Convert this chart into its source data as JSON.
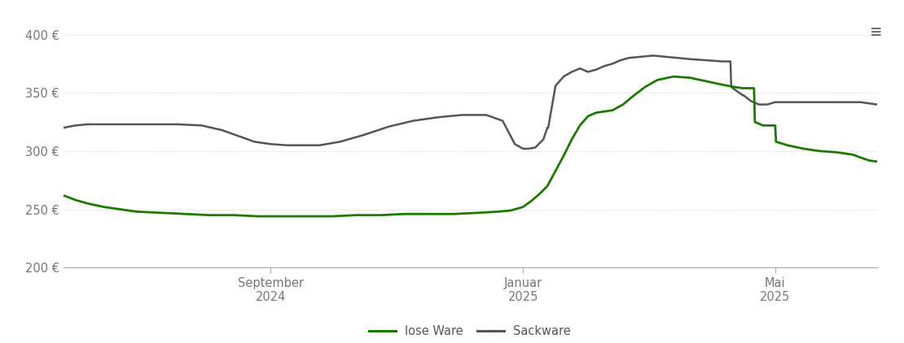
{
  "title": "",
  "ylim": [
    200,
    415
  ],
  "yticks": [
    200,
    250,
    300,
    350,
    400
  ],
  "ylabel_fmt": "{} €",
  "background_color": "#ffffff",
  "grid_color": "#cccccc",
  "lose_ware_color": "#1a7a00",
  "sackware_color": "#555555",
  "legend_labels": [
    "lose Ware",
    "Sackware"
  ],
  "x_tick_labels": [
    "September\n2024",
    "Januar\n2025",
    "Mai\n2025"
  ],
  "lose_ware": {
    "x": [
      0.0,
      0.015,
      0.03,
      0.05,
      0.07,
      0.09,
      0.12,
      0.15,
      0.18,
      0.21,
      0.24,
      0.27,
      0.3,
      0.33,
      0.36,
      0.39,
      0.42,
      0.45,
      0.48,
      0.51,
      0.535,
      0.55,
      0.565,
      0.575,
      0.585,
      0.595,
      0.605,
      0.615,
      0.625,
      0.635,
      0.645,
      0.655,
      0.665,
      0.675,
      0.688,
      0.7,
      0.715,
      0.73,
      0.75,
      0.77,
      0.79,
      0.81,
      0.825,
      0.835,
      0.845,
      0.849,
      0.85,
      0.86,
      0.861,
      0.875,
      0.876,
      0.89,
      0.91,
      0.93,
      0.95,
      0.97,
      0.99,
      1.0
    ],
    "y": [
      262,
      258,
      255,
      252,
      250,
      248,
      247,
      246,
      245,
      245,
      244,
      244,
      244,
      244,
      245,
      245,
      246,
      246,
      246,
      247,
      248,
      249,
      252,
      257,
      263,
      270,
      283,
      296,
      310,
      322,
      330,
      333,
      334,
      335,
      340,
      347,
      355,
      361,
      364,
      363,
      360,
      357,
      355,
      354,
      354,
      354,
      325,
      322,
      322,
      322,
      308,
      305,
      302,
      300,
      299,
      297,
      292,
      291
    ]
  },
  "sackware": {
    "x": [
      0.0,
      0.015,
      0.03,
      0.05,
      0.08,
      0.11,
      0.14,
      0.17,
      0.195,
      0.215,
      0.235,
      0.255,
      0.275,
      0.295,
      0.315,
      0.34,
      0.37,
      0.4,
      0.43,
      0.46,
      0.49,
      0.52,
      0.54,
      0.555,
      0.565,
      0.57,
      0.571,
      0.58,
      0.59,
      0.595,
      0.596,
      0.605,
      0.615,
      0.625,
      0.635,
      0.645,
      0.655,
      0.665,
      0.675,
      0.685,
      0.695,
      0.71,
      0.725,
      0.74,
      0.755,
      0.77,
      0.79,
      0.81,
      0.82,
      0.821,
      0.835,
      0.836,
      0.845,
      0.855,
      0.856,
      0.865,
      0.875,
      0.885,
      0.9,
      0.92,
      0.94,
      0.96,
      0.98,
      1.0
    ],
    "y": [
      320,
      322,
      323,
      323,
      323,
      323,
      323,
      322,
      318,
      313,
      308,
      306,
      305,
      305,
      305,
      308,
      314,
      321,
      326,
      329,
      331,
      331,
      326,
      306,
      302,
      302,
      302,
      303,
      310,
      320,
      320,
      356,
      364,
      368,
      371,
      368,
      370,
      373,
      375,
      378,
      380,
      381,
      382,
      381,
      380,
      379,
      378,
      377,
      377,
      355,
      348,
      348,
      343,
      340,
      340,
      340,
      342,
      342,
      342,
      342,
      342,
      342,
      342,
      340
    ]
  }
}
